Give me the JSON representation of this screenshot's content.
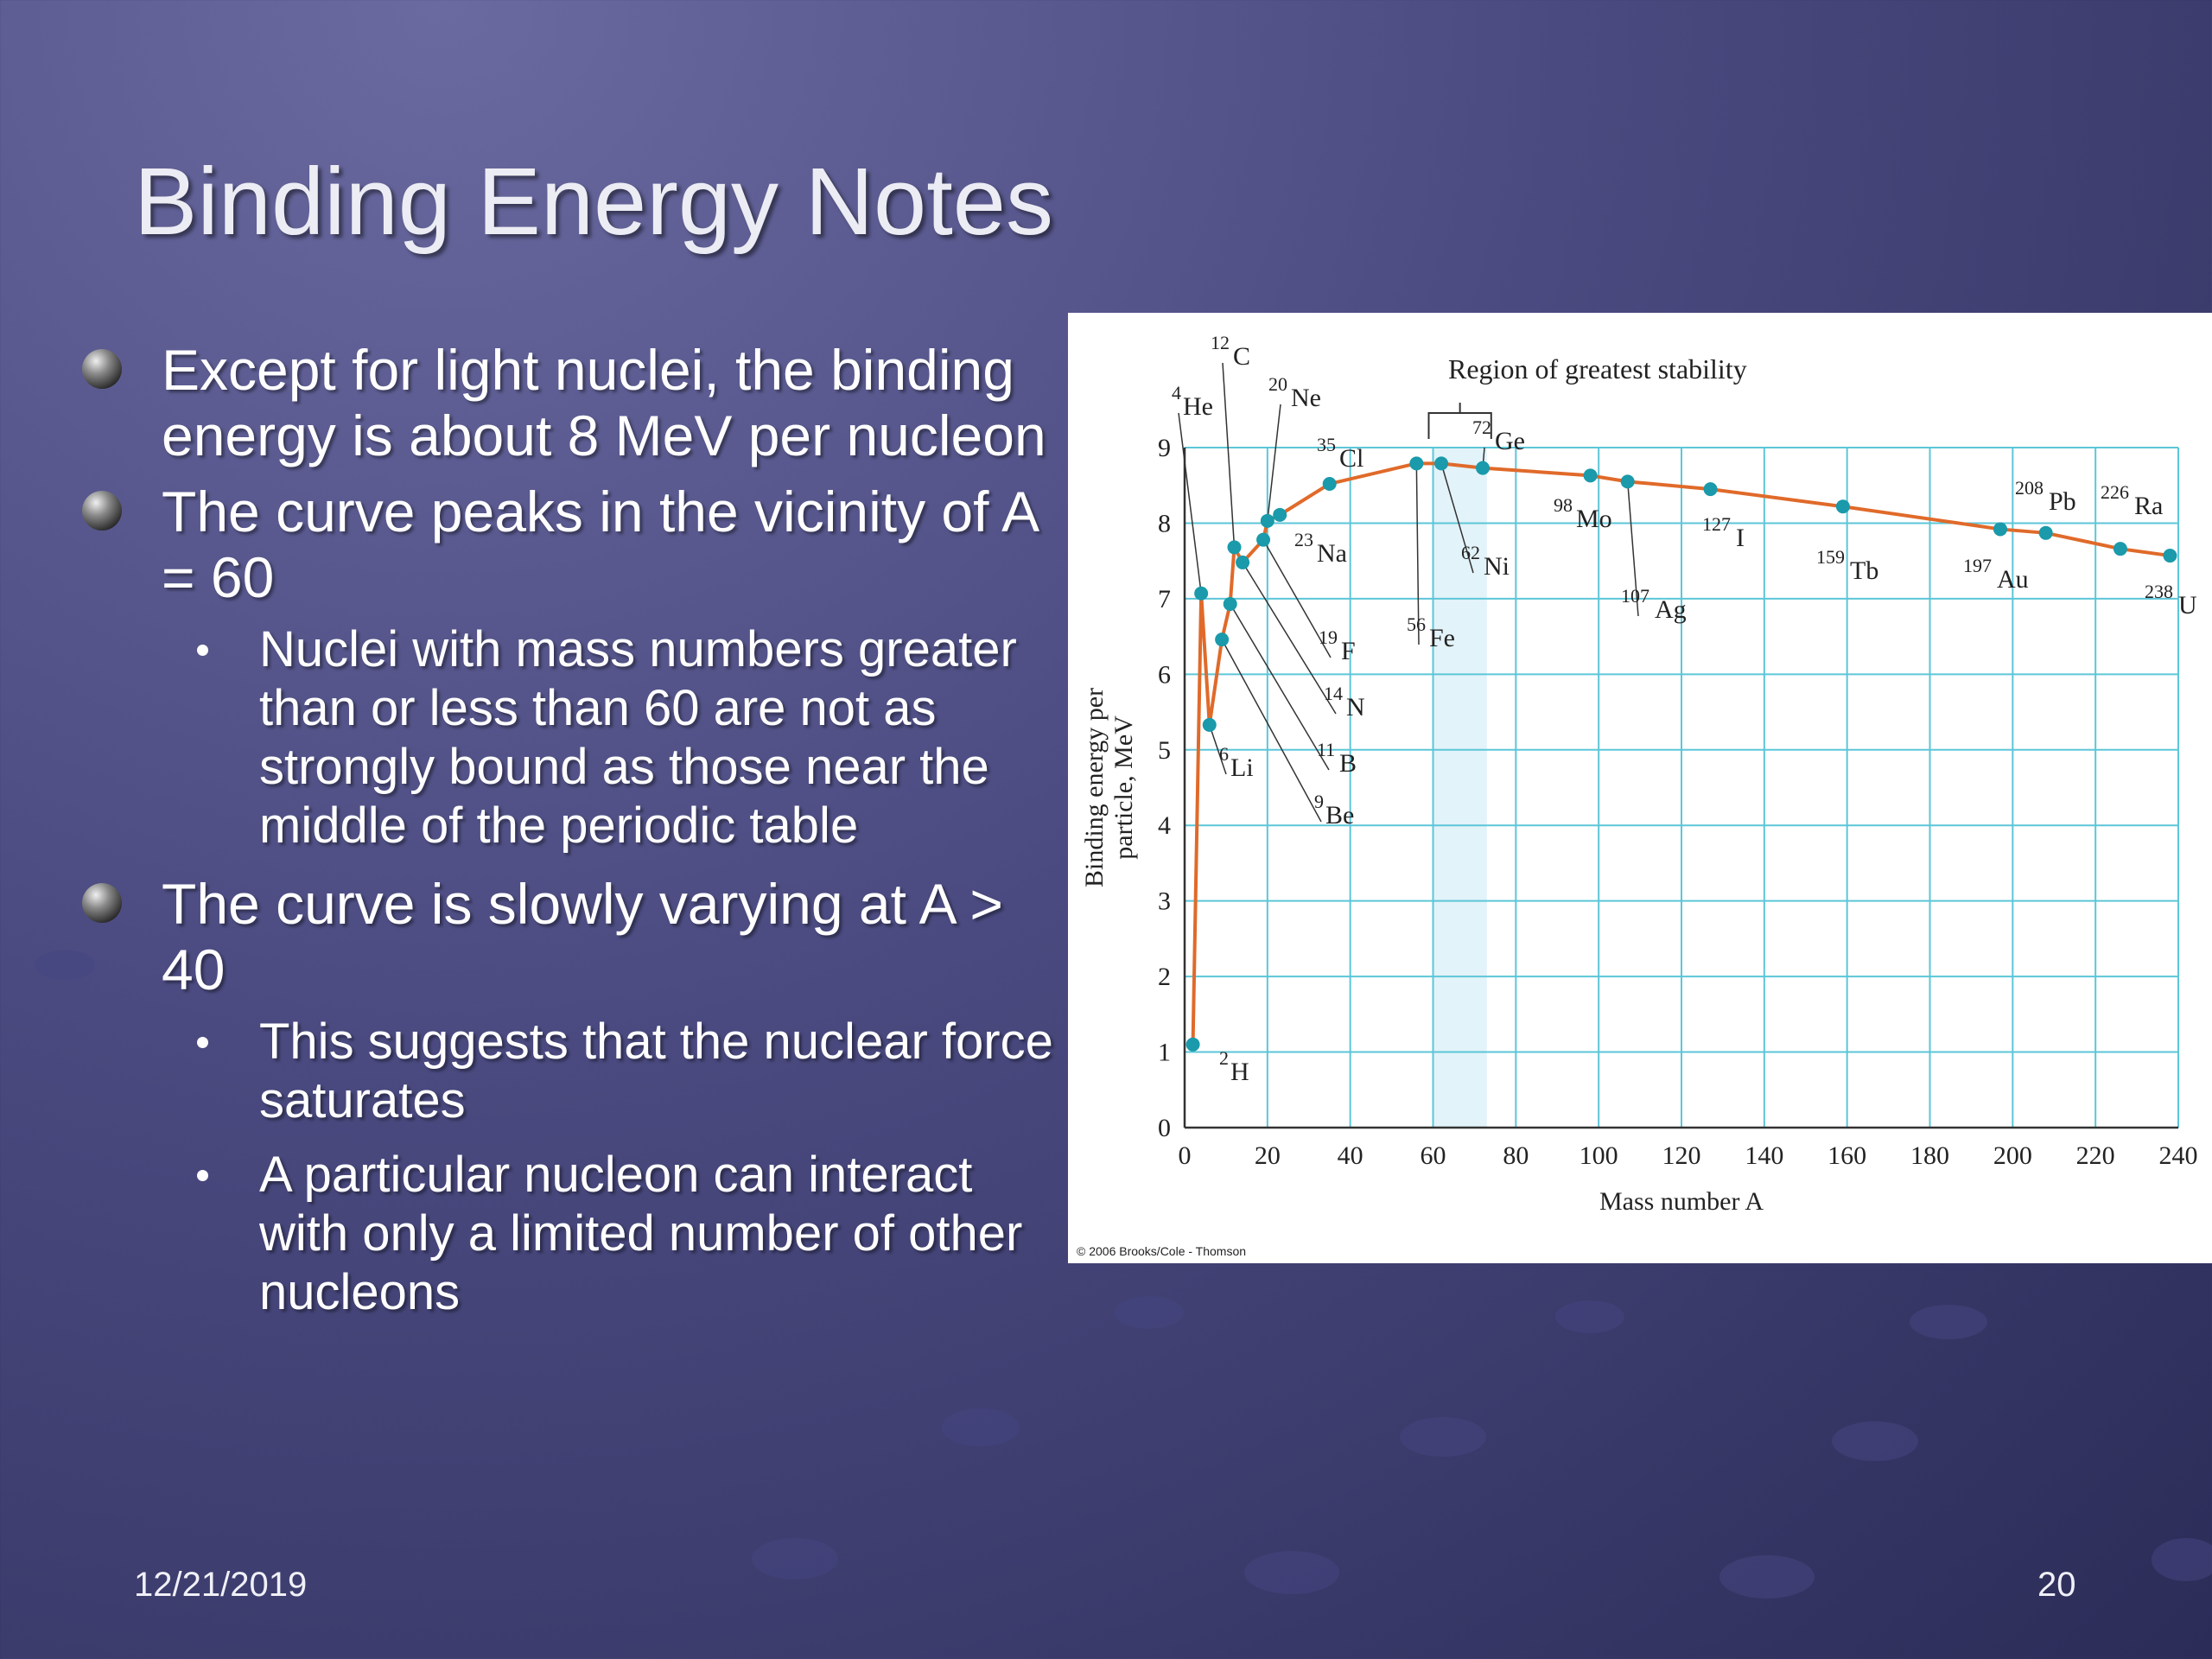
{
  "slide": {
    "title": "Binding Energy Notes",
    "date": "12/21/2019",
    "page_number": "20"
  },
  "bullets": [
    {
      "level": 1,
      "text": "Except for light nuclei, the binding energy is about 8 MeV per nucleon"
    },
    {
      "level": 1,
      "text": "The curve peaks in the vicinity of A = 60"
    },
    {
      "level": 2,
      "text": "Nuclei with mass numbers greater than or less than 60 are not as strongly bound as those near the middle of the periodic table"
    },
    {
      "level": 1,
      "text": "The curve is slowly varying at A > 40"
    },
    {
      "level": 2,
      "text": "This suggests that the nuclear force saturates"
    },
    {
      "level": 2,
      "text": "A particular nucleon can interact with only a limited number of other nucleons"
    }
  ],
  "figure": {
    "credit": "© 2006 Brooks/Cole - Thomson",
    "region_label": "Region of greatest stability"
  },
  "chart_data": {
    "type": "line",
    "title": "",
    "xlabel": "Mass number A",
    "ylabel": "Binding energy per particle, MeV",
    "xlim": [
      0,
      240
    ],
    "ylim": [
      0,
      9
    ],
    "xticks": [
      0,
      20,
      40,
      60,
      80,
      100,
      120,
      140,
      160,
      180,
      200,
      220,
      240
    ],
    "yticks": [
      0,
      1,
      2,
      3,
      4,
      5,
      6,
      7,
      8,
      9
    ],
    "grid": true,
    "stability_region": [
      60,
      73
    ],
    "colors": {
      "line": "#e06a2a",
      "marker": "#1a9aaa",
      "grid": "#5cc6d8",
      "region": "#e2f3f9"
    },
    "series": [
      {
        "points": [
          {
            "sup": "2",
            "el": "H",
            "x": 2,
            "y": 1.1
          },
          {
            "sup": "4",
            "el": "He",
            "x": 4,
            "y": 7.07
          },
          {
            "sup": "6",
            "el": "Li",
            "x": 6,
            "y": 5.33
          },
          {
            "sup": "9",
            "el": "Be",
            "x": 9,
            "y": 6.46
          },
          {
            "sup": "11",
            "el": "B",
            "x": 11,
            "y": 6.93
          },
          {
            "sup": "12",
            "el": "C",
            "x": 12,
            "y": 7.68
          },
          {
            "sup": "14",
            "el": "N",
            "x": 14,
            "y": 7.48
          },
          {
            "sup": "19",
            "el": "F",
            "x": 19,
            "y": 7.78
          },
          {
            "sup": "20",
            "el": "Ne",
            "x": 20,
            "y": 8.03
          },
          {
            "sup": "23",
            "el": "Na",
            "x": 23,
            "y": 8.11
          },
          {
            "sup": "35",
            "el": "Cl",
            "x": 35,
            "y": 8.52
          },
          {
            "sup": "56",
            "el": "Fe",
            "x": 56,
            "y": 8.79
          },
          {
            "sup": "62",
            "el": "Ni",
            "x": 62,
            "y": 8.79
          },
          {
            "sup": "72",
            "el": "Ge",
            "x": 72,
            "y": 8.73
          },
          {
            "sup": "98",
            "el": "Mo",
            "x": 98,
            "y": 8.63
          },
          {
            "sup": "107",
            "el": "Ag",
            "x": 107,
            "y": 8.55
          },
          {
            "sup": "127",
            "el": "I",
            "x": 127,
            "y": 8.45
          },
          {
            "sup": "159",
            "el": "Tb",
            "x": 159,
            "y": 8.22
          },
          {
            "sup": "197",
            "el": "Au",
            "x": 197,
            "y": 7.92
          },
          {
            "sup": "208",
            "el": "Pb",
            "x": 208,
            "y": 7.87
          },
          {
            "sup": "226",
            "el": "Ra",
            "x": 226,
            "y": 7.66
          },
          {
            "sup": "238",
            "el": "U",
            "x": 238,
            "y": 7.57
          }
        ]
      }
    ]
  }
}
